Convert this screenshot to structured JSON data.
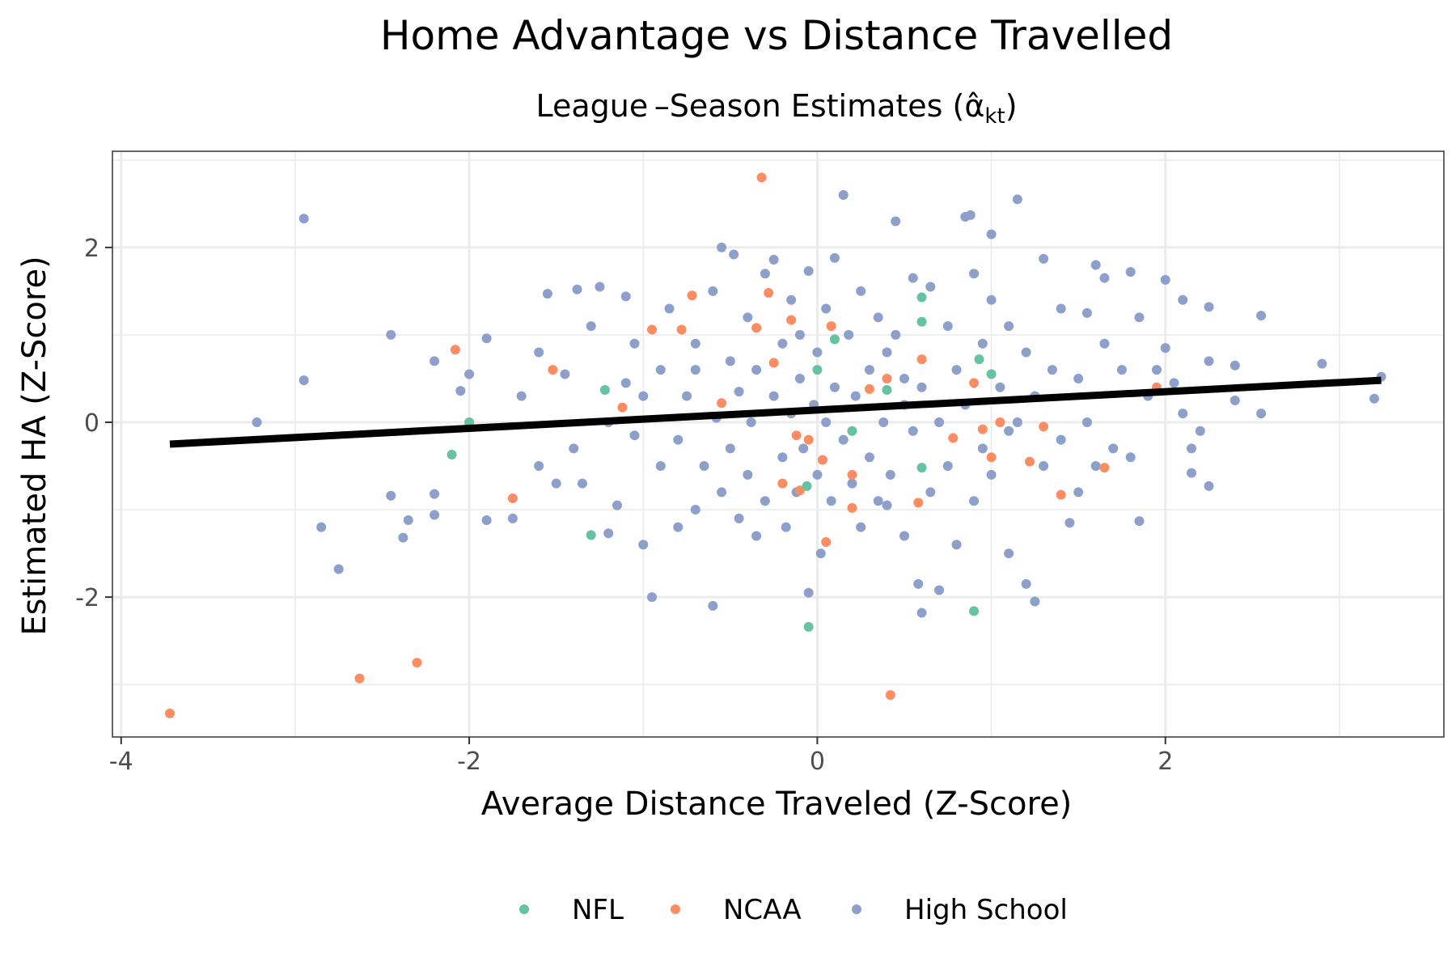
{
  "chart_data": {
    "type": "scatter",
    "title": "Home Advantage vs Distance Travelled",
    "subtitle_main": "League –Season Estimates (",
    "subtitle_symbol": "α̂",
    "subtitle_sub": "kt",
    "subtitle_close": ")",
    "xlabel": "Average Distance Traveled (Z-Score)",
    "ylabel": "Estimated HA (Z-Score)",
    "xlim": [
      -4.05,
      3.6
    ],
    "ylim": [
      -3.6,
      3.1
    ],
    "xticks": [
      -4,
      -2,
      0,
      2
    ],
    "xtick_labels": [
      "-4",
      "-2",
      "0",
      "2"
    ],
    "yticks": [
      -2,
      0,
      2
    ],
    "ytick_labels": [
      "-2",
      "0",
      "2"
    ],
    "grid": true,
    "legend_position": "bottom",
    "trend_line": {
      "x": [
        -3.72,
        3.24
      ],
      "y": [
        -0.25,
        0.48
      ]
    },
    "series": [
      {
        "name": "NFL",
        "color": "#66c2a5",
        "points": [
          [
            -2.1,
            -0.37
          ],
          [
            -1.3,
            -1.29
          ],
          [
            -1.22,
            0.37
          ],
          [
            -0.06,
            -0.73
          ],
          [
            -0.05,
            -2.34
          ],
          [
            0.0,
            0.6
          ],
          [
            0.1,
            0.95
          ],
          [
            0.4,
            0.37
          ],
          [
            0.6,
            1.43
          ],
          [
            0.6,
            1.15
          ],
          [
            0.6,
            -0.52
          ],
          [
            0.9,
            -2.16
          ],
          [
            0.93,
            0.72
          ],
          [
            1.0,
            0.55
          ],
          [
            -2.0,
            0.0
          ],
          [
            0.2,
            -0.1
          ]
        ]
      },
      {
        "name": "NCAA",
        "color": "#fc8d62",
        "points": [
          [
            -3.72,
            -3.33
          ],
          [
            -2.63,
            -2.93
          ],
          [
            -2.3,
            -2.75
          ],
          [
            -2.08,
            0.83
          ],
          [
            -1.75,
            -0.87
          ],
          [
            -1.52,
            0.6
          ],
          [
            -1.12,
            0.17
          ],
          [
            -0.95,
            1.06
          ],
          [
            -0.78,
            1.06
          ],
          [
            -0.72,
            1.45
          ],
          [
            -0.32,
            2.8
          ],
          [
            -0.28,
            1.48
          ],
          [
            -0.25,
            0.68
          ],
          [
            -0.2,
            -0.7
          ],
          [
            -0.15,
            1.17
          ],
          [
            -0.12,
            -0.15
          ],
          [
            -0.1,
            -0.78
          ],
          [
            -0.05,
            -0.2
          ],
          [
            0.03,
            -0.43
          ],
          [
            0.05,
            -1.37
          ],
          [
            0.08,
            1.1
          ],
          [
            0.2,
            -0.98
          ],
          [
            0.2,
            -0.6
          ],
          [
            0.4,
            0.5
          ],
          [
            0.42,
            -3.12
          ],
          [
            0.58,
            -0.92
          ],
          [
            0.6,
            0.72
          ],
          [
            0.9,
            0.45
          ],
          [
            0.95,
            -0.08
          ],
          [
            1.0,
            -0.4
          ],
          [
            1.05,
            0.0
          ],
          [
            1.3,
            -0.05
          ],
          [
            1.4,
            -0.83
          ],
          [
            1.65,
            -0.52
          ],
          [
            1.95,
            0.4
          ],
          [
            1.22,
            -0.45
          ],
          [
            -0.35,
            1.08
          ],
          [
            0.3,
            0.38
          ],
          [
            0.78,
            -0.18
          ],
          [
            -0.55,
            0.22
          ]
        ]
      },
      {
        "name": "High School",
        "color": "#8da0cb",
        "points": [
          [
            -2.95,
            2.33
          ],
          [
            -2.95,
            0.48
          ],
          [
            -3.22,
            0.0
          ],
          [
            -2.85,
            -1.2
          ],
          [
            -2.75,
            -1.68
          ],
          [
            -2.45,
            1.0
          ],
          [
            -2.45,
            -0.84
          ],
          [
            -2.38,
            -1.32
          ],
          [
            -2.35,
            -1.12
          ],
          [
            -2.2,
            -1.06
          ],
          [
            -2.2,
            -0.82
          ],
          [
            -2.2,
            0.7
          ],
          [
            -2.05,
            0.36
          ],
          [
            -2.0,
            0.55
          ],
          [
            -1.9,
            -1.12
          ],
          [
            -1.9,
            0.96
          ],
          [
            -1.75,
            -1.1
          ],
          [
            -1.7,
            0.3
          ],
          [
            -1.6,
            -0.5
          ],
          [
            -1.6,
            0.8
          ],
          [
            -1.55,
            1.47
          ],
          [
            -1.5,
            -0.7
          ],
          [
            -1.45,
            0.55
          ],
          [
            -1.4,
            -0.3
          ],
          [
            -1.38,
            1.52
          ],
          [
            -1.35,
            -0.7
          ],
          [
            -1.3,
            1.1
          ],
          [
            -1.25,
            1.55
          ],
          [
            -1.2,
            0.0
          ],
          [
            -1.2,
            -1.27
          ],
          [
            -1.15,
            -0.95
          ],
          [
            -1.1,
            1.44
          ],
          [
            -1.1,
            0.45
          ],
          [
            -1.05,
            0.9
          ],
          [
            -1.0,
            -1.4
          ],
          [
            -1.0,
            0.3
          ],
          [
            -0.95,
            -2.0
          ],
          [
            -0.9,
            -0.5
          ],
          [
            -0.9,
            0.6
          ],
          [
            -0.85,
            1.3
          ],
          [
            -0.8,
            -0.2
          ],
          [
            -0.8,
            -1.2
          ],
          [
            -0.75,
            0.3
          ],
          [
            -0.7,
            -1.0
          ],
          [
            -0.7,
            0.9
          ],
          [
            -0.65,
            -0.5
          ],
          [
            -0.6,
            1.5
          ],
          [
            -0.6,
            -2.1
          ],
          [
            -0.58,
            0.05
          ],
          [
            -0.55,
            -0.8
          ],
          [
            -0.55,
            2.0
          ],
          [
            -0.5,
            0.7
          ],
          [
            -0.5,
            -0.3
          ],
          [
            -0.48,
            1.92
          ],
          [
            -0.45,
            -1.1
          ],
          [
            -0.45,
            0.35
          ],
          [
            -0.4,
            1.2
          ],
          [
            -0.4,
            -0.6
          ],
          [
            -0.38,
            0.0
          ],
          [
            -0.35,
            -1.3
          ],
          [
            -0.35,
            0.6
          ],
          [
            -0.3,
            1.7
          ],
          [
            -0.3,
            -0.9
          ],
          [
            -0.25,
            0.3
          ],
          [
            -0.25,
            1.86
          ],
          [
            -0.2,
            -0.4
          ],
          [
            -0.2,
            0.9
          ],
          [
            -0.18,
            -1.2
          ],
          [
            -0.15,
            1.4
          ],
          [
            -0.15,
            0.1
          ],
          [
            -0.12,
            -0.8
          ],
          [
            -0.1,
            0.5
          ],
          [
            -0.1,
            1.0
          ],
          [
            -0.08,
            -0.3
          ],
          [
            -0.05,
            1.73
          ],
          [
            -0.05,
            -1.95
          ],
          [
            -0.02,
            0.2
          ],
          [
            0.0,
            -0.6
          ],
          [
            0.0,
            0.8
          ],
          [
            0.02,
            -1.5
          ],
          [
            0.05,
            1.3
          ],
          [
            0.05,
            0.0
          ],
          [
            0.08,
            -0.9
          ],
          [
            0.1,
            0.4
          ],
          [
            0.1,
            1.88
          ],
          [
            0.15,
            -0.2
          ],
          [
            0.15,
            2.6
          ],
          [
            0.18,
            1.0
          ],
          [
            0.2,
            -0.7
          ],
          [
            0.22,
            0.3
          ],
          [
            0.25,
            1.5
          ],
          [
            0.25,
            -1.2
          ],
          [
            0.3,
            0.6
          ],
          [
            0.3,
            -0.4
          ],
          [
            0.35,
            1.2
          ],
          [
            0.35,
            -0.9
          ],
          [
            0.38,
            0.0
          ],
          [
            0.4,
            0.8
          ],
          [
            0.42,
            -0.6
          ],
          [
            0.45,
            2.3
          ],
          [
            0.45,
            1.0
          ],
          [
            0.5,
            -1.3
          ],
          [
            0.5,
            0.2
          ],
          [
            0.55,
            -0.1
          ],
          [
            0.55,
            1.65
          ],
          [
            0.58,
            -1.85
          ],
          [
            0.6,
            -2.18
          ],
          [
            0.6,
            0.4
          ],
          [
            0.65,
            1.55
          ],
          [
            0.65,
            -0.8
          ],
          [
            0.7,
            0.0
          ],
          [
            0.7,
            -1.92
          ],
          [
            0.75,
            1.1
          ],
          [
            0.75,
            -0.5
          ],
          [
            0.8,
            0.6
          ],
          [
            0.8,
            -1.4
          ],
          [
            0.85,
            2.35
          ],
          [
            0.85,
            0.2
          ],
          [
            0.88,
            2.37
          ],
          [
            0.9,
            -0.9
          ],
          [
            0.9,
            1.7
          ],
          [
            0.95,
            -0.3
          ],
          [
            0.95,
            0.9
          ],
          [
            1.0,
            1.4
          ],
          [
            1.0,
            -0.6
          ],
          [
            1.0,
            2.15
          ],
          [
            1.05,
            0.4
          ],
          [
            1.1,
            -1.5
          ],
          [
            1.1,
            1.1
          ],
          [
            1.15,
            2.55
          ],
          [
            1.15,
            0.0
          ],
          [
            1.2,
            -1.85
          ],
          [
            1.2,
            0.8
          ],
          [
            1.25,
            -2.05
          ],
          [
            1.25,
            0.3
          ],
          [
            1.3,
            1.87
          ],
          [
            1.3,
            -0.5
          ],
          [
            1.35,
            0.6
          ],
          [
            1.4,
            -0.2
          ],
          [
            1.4,
            1.3
          ],
          [
            1.45,
            -1.15
          ],
          [
            1.5,
            0.5
          ],
          [
            1.5,
            -0.8
          ],
          [
            1.55,
            1.25
          ],
          [
            1.55,
            0.0
          ],
          [
            1.6,
            1.8
          ],
          [
            1.6,
            -0.5
          ],
          [
            1.65,
            0.9
          ],
          [
            1.65,
            1.65
          ],
          [
            1.7,
            -0.3
          ],
          [
            1.75,
            0.6
          ],
          [
            1.8,
            1.72
          ],
          [
            1.8,
            -0.4
          ],
          [
            1.85,
            -1.13
          ],
          [
            1.85,
            1.2
          ],
          [
            1.9,
            0.3
          ],
          [
            1.95,
            0.6
          ],
          [
            2.0,
            1.63
          ],
          [
            2.0,
            0.85
          ],
          [
            2.05,
            0.45
          ],
          [
            2.1,
            0.1
          ],
          [
            2.1,
            1.4
          ],
          [
            2.15,
            -0.3
          ],
          [
            2.2,
            -0.1
          ],
          [
            2.25,
            0.7
          ],
          [
            2.25,
            1.32
          ],
          [
            2.25,
            -0.73
          ],
          [
            2.4,
            0.65
          ],
          [
            2.4,
            0.25
          ],
          [
            2.55,
            0.1
          ],
          [
            2.55,
            1.22
          ],
          [
            2.9,
            0.67
          ],
          [
            3.2,
            0.27
          ],
          [
            3.24,
            0.52
          ],
          [
            2.15,
            -0.58
          ],
          [
            1.1,
            -0.1
          ],
          [
            0.5,
            0.5
          ],
          [
            -0.7,
            0.6
          ],
          [
            -1.05,
            -0.15
          ],
          [
            0.4,
            -0.95
          ]
        ]
      }
    ]
  }
}
